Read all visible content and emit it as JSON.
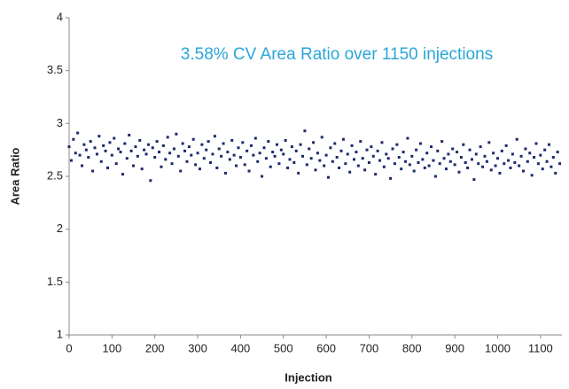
{
  "chart_data": {
    "type": "scatter",
    "annotation": "3.58% CV Area Ratio over 1150 injections",
    "x_label": "Injection",
    "y_label": "Area Ratio",
    "color": "#1b2b6b",
    "xlim": [
      0,
      1150
    ],
    "ylim": [
      1,
      4
    ],
    "xticks": [
      0,
      100,
      200,
      300,
      400,
      500,
      600,
      700,
      800,
      900,
      1000,
      1100
    ],
    "yticks": [
      1,
      1.5,
      2,
      2.5,
      3,
      3.5,
      4
    ],
    "x": [
      0,
      5,
      10,
      15,
      20,
      25,
      30,
      35,
      40,
      45,
      50,
      55,
      60,
      65,
      70,
      75,
      80,
      85,
      90,
      95,
      100,
      105,
      110,
      115,
      120,
      125,
      130,
      135,
      140,
      145,
      150,
      155,
      160,
      165,
      170,
      175,
      180,
      185,
      190,
      195,
      200,
      205,
      210,
      215,
      220,
      225,
      230,
      235,
      240,
      245,
      250,
      255,
      260,
      265,
      270,
      275,
      280,
      285,
      290,
      295,
      300,
      305,
      310,
      315,
      320,
      325,
      330,
      335,
      340,
      345,
      350,
      355,
      360,
      365,
      370,
      375,
      380,
      385,
      390,
      395,
      400,
      405,
      410,
      415,
      420,
      425,
      430,
      435,
      440,
      445,
      450,
      455,
      460,
      465,
      470,
      475,
      480,
      485,
      490,
      495,
      500,
      505,
      510,
      515,
      520,
      525,
      530,
      535,
      540,
      545,
      550,
      555,
      560,
      565,
      570,
      575,
      580,
      585,
      590,
      595,
      600,
      605,
      610,
      615,
      620,
      625,
      630,
      635,
      640,
      645,
      650,
      655,
      660,
      665,
      670,
      675,
      680,
      685,
      690,
      695,
      700,
      705,
      710,
      715,
      720,
      725,
      730,
      735,
      740,
      745,
      750,
      755,
      760,
      765,
      770,
      775,
      780,
      785,
      790,
      795,
      800,
      805,
      810,
      815,
      820,
      825,
      830,
      835,
      840,
      845,
      850,
      855,
      860,
      865,
      870,
      875,
      880,
      885,
      890,
      895,
      900,
      905,
      910,
      915,
      920,
      925,
      930,
      935,
      940,
      945,
      950,
      955,
      960,
      965,
      970,
      975,
      980,
      985,
      990,
      995,
      1000,
      1005,
      1010,
      1015,
      1020,
      1025,
      1030,
      1035,
      1040,
      1045,
      1050,
      1055,
      1060,
      1065,
      1070,
      1075,
      1080,
      1085,
      1090,
      1095,
      1100,
      1105,
      1110,
      1115,
      1120,
      1125,
      1130,
      1135,
      1140,
      1145
    ],
    "values": [
      2.78,
      2.65,
      2.85,
      2.72,
      2.91,
      2.7,
      2.6,
      2.8,
      2.75,
      2.68,
      2.83,
      2.55,
      2.77,
      2.71,
      2.88,
      2.64,
      2.79,
      2.74,
      2.58,
      2.82,
      2.7,
      2.86,
      2.62,
      2.76,
      2.73,
      2.52,
      2.81,
      2.67,
      2.89,
      2.74,
      2.6,
      2.78,
      2.69,
      2.84,
      2.57,
      2.75,
      2.71,
      2.8,
      2.46,
      2.77,
      2.68,
      2.83,
      2.73,
      2.59,
      2.79,
      2.66,
      2.87,
      2.72,
      2.62,
      2.76,
      2.9,
      2.69,
      2.55,
      2.81,
      2.74,
      2.64,
      2.78,
      2.7,
      2.85,
      2.61,
      2.72,
      2.57,
      2.8,
      2.67,
      2.75,
      2.83,
      2.63,
      2.71,
      2.88,
      2.58,
      2.76,
      2.69,
      2.81,
      2.53,
      2.73,
      2.66,
      2.84,
      2.7,
      2.6,
      2.77,
      2.68,
      2.82,
      2.61,
      2.74,
      2.55,
      2.79,
      2.7,
      2.86,
      2.64,
      2.72,
      2.5,
      2.77,
      2.67,
      2.83,
      2.59,
      2.73,
      2.69,
      2.8,
      2.62,
      2.75,
      2.71,
      2.84,
      2.58,
      2.66,
      2.78,
      2.63,
      2.74,
      2.53,
      2.8,
      2.69,
      2.93,
      2.61,
      2.76,
      2.67,
      2.82,
      2.56,
      2.72,
      2.65,
      2.87,
      2.6,
      2.7,
      2.49,
      2.77,
      2.64,
      2.81,
      2.68,
      2.58,
      2.74,
      2.85,
      2.62,
      2.71,
      2.54,
      2.79,
      2.66,
      2.73,
      2.6,
      2.83,
      2.67,
      2.56,
      2.75,
      2.63,
      2.78,
      2.69,
      2.52,
      2.74,
      2.65,
      2.82,
      2.59,
      2.71,
      2.67,
      2.48,
      2.76,
      2.62,
      2.8,
      2.68,
      2.57,
      2.73,
      2.64,
      2.86,
      2.61,
      2.69,
      2.55,
      2.75,
      2.63,
      2.81,
      2.66,
      2.58,
      2.72,
      2.6,
      2.78,
      2.65,
      2.5,
      2.74,
      2.62,
      2.83,
      2.67,
      2.57,
      2.71,
      2.64,
      2.76,
      2.61,
      2.73,
      2.54,
      2.68,
      2.8,
      2.63,
      2.58,
      2.75,
      2.66,
      2.47,
      2.71,
      2.62,
      2.78,
      2.59,
      2.69,
      2.64,
      2.82,
      2.56,
      2.72,
      2.6,
      2.67,
      2.53,
      2.74,
      2.62,
      2.79,
      2.65,
      2.58,
      2.71,
      2.63,
      2.85,
      2.6,
      2.69,
      2.55,
      2.76,
      2.64,
      2.72,
      2.51,
      2.68,
      2.81,
      2.62,
      2.7,
      2.57,
      2.75,
      2.64,
      2.8,
      2.59,
      2.68,
      2.53,
      2.73,
      2.62
    ]
  }
}
